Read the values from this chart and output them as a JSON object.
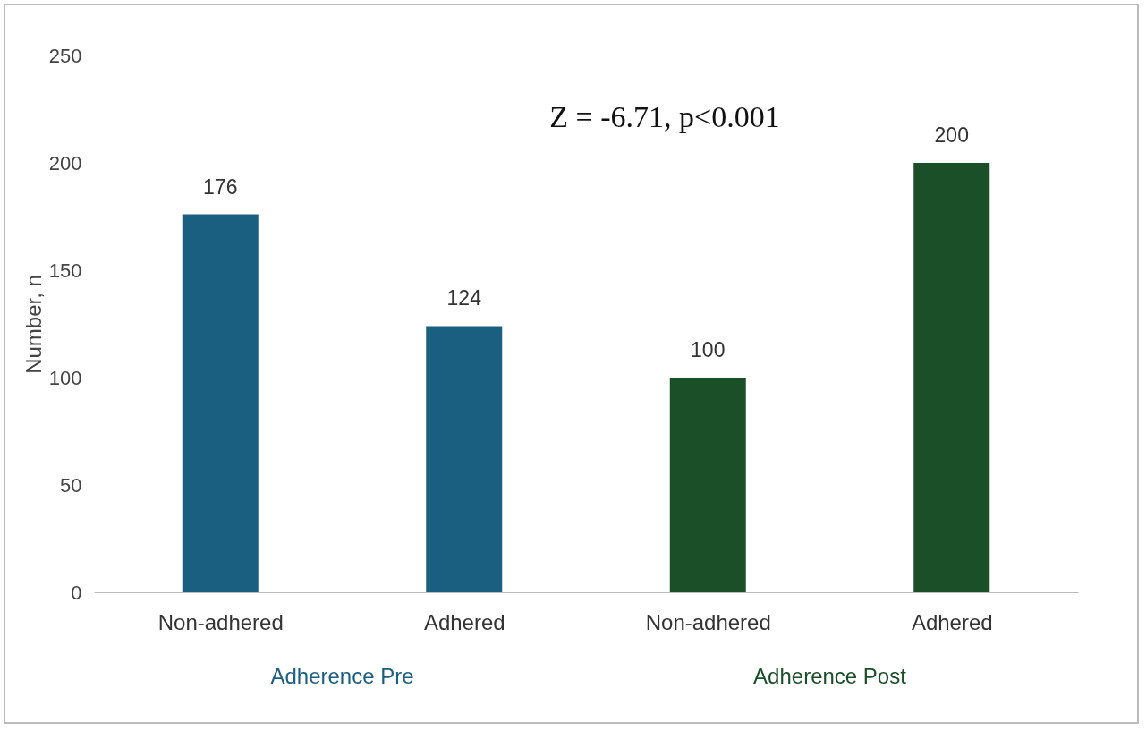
{
  "chart_data": {
    "type": "bar",
    "ylabel": "Number, n",
    "categories": [
      "Non-adhered",
      "Adhered",
      "Non-adhered",
      "Adhered"
    ],
    "series": [
      {
        "name": "Adherence Pre",
        "color": "#1a5e80",
        "values": [
          176,
          124,
          null,
          null
        ]
      },
      {
        "name": "Adherence Post",
        "color": "#1a4f28",
        "values": [
          null,
          null,
          100,
          200
        ]
      }
    ],
    "ylim": [
      0,
      250
    ],
    "yticks": [
      0,
      50,
      100,
      150,
      200,
      250
    ],
    "grid": false,
    "legend": false,
    "data_labels": true,
    "annotations": [
      "Z = -6.71, p<0.001"
    ]
  }
}
